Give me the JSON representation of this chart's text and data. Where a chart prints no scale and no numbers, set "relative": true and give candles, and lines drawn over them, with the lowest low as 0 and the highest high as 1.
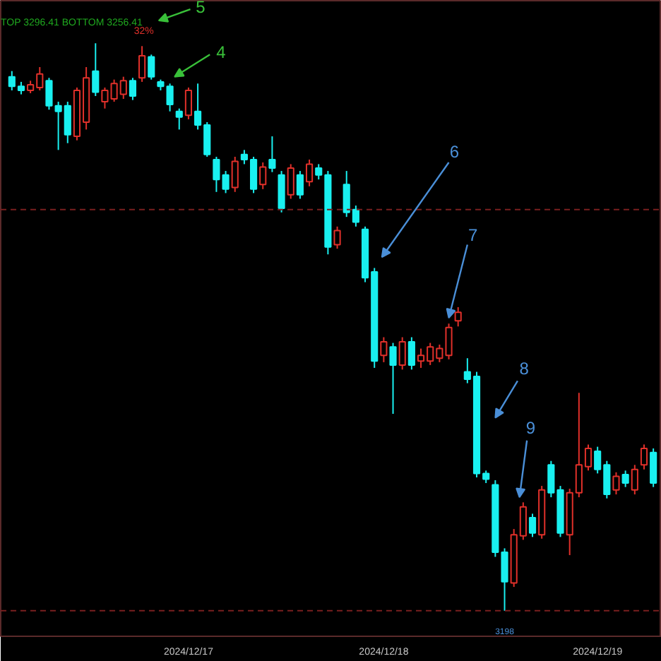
{
  "chart_data": {
    "type": "candlestick",
    "relative": true,
    "grid": false,
    "categories": [
      null,
      null,
      null,
      null,
      null,
      null,
      null,
      null,
      null,
      null,
      null,
      null,
      null,
      null,
      null,
      null,
      null,
      null,
      null,
      "2024/12/17",
      null,
      null,
      null,
      null,
      null,
      null,
      null,
      null,
      null,
      null,
      null,
      null,
      null,
      null,
      null,
      null,
      null,
      null,
      null,
      null,
      "2024/12/18",
      null,
      null,
      null,
      null,
      null,
      null,
      null,
      null,
      null,
      null,
      null,
      null,
      null,
      null,
      null,
      null,
      null,
      null,
      null,
      null,
      null,
      null,
      "2024/12/19",
      null,
      null,
      null,
      null,
      null,
      null
    ],
    "ohlc": [
      [
        0.941,
        0.951,
        0.917,
        0.924
      ],
      [
        0.924,
        0.932,
        0.91,
        0.917
      ],
      [
        0.917,
        0.934,
        0.912,
        0.927
      ],
      [
        0.922,
        0.958,
        0.917,
        0.946
      ],
      [
        0.934,
        0.939,
        0.883,
        0.89
      ],
      [
        0.89,
        0.897,
        0.812,
        0.88
      ],
      [
        0.89,
        0.897,
        0.824,
        0.839
      ],
      [
        0.836,
        0.922,
        0.829,
        0.917
      ],
      [
        0.861,
        0.958,
        0.848,
        0.939
      ],
      [
        0.951,
        1.0,
        0.907,
        0.914
      ],
      [
        0.897,
        0.922,
        0.885,
        0.917
      ],
      [
        0.902,
        0.936,
        0.897,
        0.929
      ],
      [
        0.91,
        0.941,
        0.902,
        0.934
      ],
      [
        0.934,
        0.939,
        0.9,
        0.907
      ],
      [
        0.939,
        0.995,
        0.932,
        0.978
      ],
      [
        0.976,
        0.98,
        0.936,
        0.941
      ],
      [
        0.932,
        0.936,
        0.917,
        0.924
      ],
      [
        0.924,
        0.929,
        0.88,
        0.892
      ],
      [
        0.88,
        0.885,
        0.848,
        0.87
      ],
      [
        0.873,
        0.922,
        0.866,
        0.917
      ],
      [
        0.88,
        0.929,
        0.848,
        0.856
      ],
      [
        0.856,
        0.861,
        0.8,
        0.804
      ],
      [
        0.795,
        0.8,
        0.738,
        0.76
      ],
      [
        0.768,
        0.775,
        0.736,
        0.743
      ],
      [
        0.746,
        0.8,
        0.738,
        0.792
      ],
      [
        0.804,
        0.812,
        0.787,
        0.795
      ],
      [
        0.795,
        0.8,
        0.736,
        0.743
      ],
      [
        0.751,
        0.79,
        0.743,
        0.782
      ],
      [
        0.795,
        0.836,
        0.773,
        0.78
      ],
      [
        0.768,
        0.775,
        0.702,
        0.709
      ],
      [
        0.733,
        0.787,
        0.726,
        0.78
      ],
      [
        0.768,
        0.775,
        0.726,
        0.733
      ],
      [
        0.756,
        0.795,
        0.748,
        0.787
      ],
      [
        0.78,
        0.787,
        0.76,
        0.768
      ],
      [
        0.768,
        0.775,
        0.628,
        0.641
      ],
      [
        0.645,
        0.677,
        0.638,
        0.67
      ],
      [
        0.751,
        0.775,
        0.694,
        0.702
      ],
      [
        0.707,
        0.714,
        0.677,
        0.685
      ],
      [
        0.672,
        0.677,
        0.579,
        0.587
      ],
      [
        0.597,
        0.604,
        0.428,
        0.44
      ],
      [
        0.45,
        0.482,
        0.438,
        0.474
      ],
      [
        0.465,
        0.472,
        0.347,
        0.433
      ],
      [
        0.433,
        0.482,
        0.425,
        0.474
      ],
      [
        0.474,
        0.482,
        0.425,
        0.433
      ],
      [
        0.44,
        0.462,
        0.428,
        0.45
      ],
      [
        0.44,
        0.472,
        0.433,
        0.465
      ],
      [
        0.445,
        0.469,
        0.438,
        0.462
      ],
      [
        0.45,
        0.506,
        0.443,
        0.499
      ],
      [
        0.511,
        0.535,
        0.501,
        0.526
      ],
      [
        0.421,
        0.445,
        0.401,
        0.408
      ],
      [
        0.413,
        0.421,
        0.235,
        0.242
      ],
      [
        0.242,
        0.247,
        0.225,
        0.232
      ],
      [
        0.222,
        0.23,
        0.095,
        0.103
      ],
      [
        0.103,
        0.11,
        0.0,
        0.051
      ],
      [
        0.049,
        0.144,
        0.042,
        0.134
      ],
      [
        0.132,
        0.191,
        0.125,
        0.183
      ],
      [
        0.164,
        0.171,
        0.13,
        0.137
      ],
      [
        0.134,
        0.22,
        0.127,
        0.213
      ],
      [
        0.257,
        0.264,
        0.2,
        0.208
      ],
      [
        0.213,
        0.22,
        0.13,
        0.137
      ],
      [
        0.134,
        0.215,
        0.098,
        0.208
      ],
      [
        0.208,
        0.384,
        0.2,
        0.257
      ],
      [
        0.254,
        0.293,
        0.247,
        0.286
      ],
      [
        0.281,
        0.289,
        0.242,
        0.249
      ],
      [
        0.257,
        0.264,
        0.198,
        0.205
      ],
      [
        0.213,
        0.244,
        0.205,
        0.237
      ],
      [
        0.24,
        0.247,
        0.218,
        0.225
      ],
      [
        0.213,
        0.257,
        0.205,
        0.249
      ],
      [
        0.257,
        0.293,
        0.249,
        0.286
      ],
      [
        0.279,
        0.286,
        0.218,
        0.225
      ]
    ],
    "ref_lines": [
      {
        "axis": "y",
        "value": 0.707,
        "color": "#7a1f1f",
        "line_style": "dashed"
      },
      {
        "axis": "y",
        "value": 0.0,
        "color": "#7a1f1f",
        "line_style": "dashed"
      }
    ],
    "annotations": [
      "TOP 3296.41  BOTTOM 3256.41",
      "32%",
      "5",
      "4",
      "6",
      "7",
      "8",
      "9",
      "3198"
    ]
  }
}
